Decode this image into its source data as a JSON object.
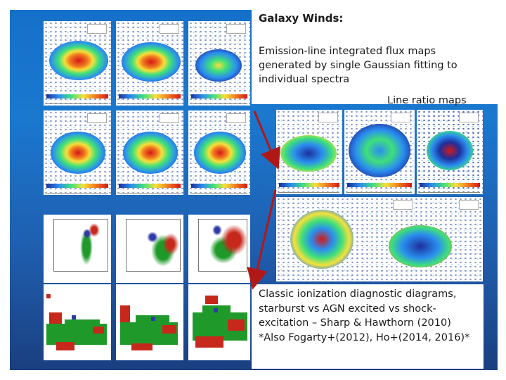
{
  "slide": {
    "title": "Galaxy Winds:",
    "description": "Emission-line integrated flux maps generated by single Gaussian fitting to individual spectra",
    "ratio_label": "Line ratio maps",
    "classic_text": "Classic ionization diagnostic diagrams, starburst vs AGN excited vs shock-excitation – Sharp & Hawthorn (2010)\n*Also Fogarty+(2012), Ho+(2014, 2016)*"
  },
  "colors": {
    "background_blue": "#1a78cf",
    "arrow_red": "#b01818",
    "green_region": "#1f9a2a",
    "red_region": "#c6281c",
    "blue_region": "#2d3aa8"
  }
}
